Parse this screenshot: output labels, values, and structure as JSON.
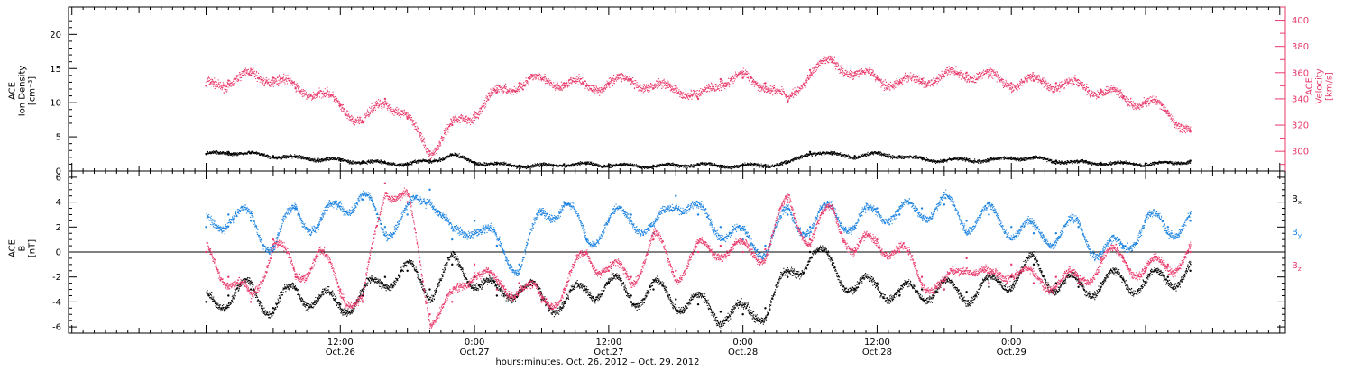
{
  "chart_data": [
    {
      "type": "scatter",
      "panel": "top",
      "ylabel_lines": [
        "ACE",
        "Ion Density",
        "[cm⁻³]"
      ],
      "ylim": [
        0,
        24
      ],
      "yticks": [
        0,
        5,
        10,
        15,
        20
      ],
      "y2label_lines": [
        "ACE",
        "Velocity",
        "[km/s]"
      ],
      "y2lim": [
        285,
        410
      ],
      "y2ticks": [
        300,
        320,
        340,
        360,
        380,
        400
      ],
      "series": [
        {
          "key": "density",
          "axis": "left",
          "color": "#000000",
          "x": [
            0,
            2,
            4,
            6,
            8,
            10,
            12,
            14,
            16,
            18,
            20,
            22,
            24,
            26,
            28,
            30,
            32,
            34,
            36,
            38,
            40,
            42,
            44,
            46,
            48,
            50,
            52,
            54,
            56,
            58,
            60,
            62,
            64,
            66,
            68,
            70,
            72,
            74,
            76,
            78,
            80,
            82,
            84,
            86,
            88
          ],
          "y": [
            2.5,
            2.8,
            2.6,
            2.2,
            2.0,
            1.8,
            1.6,
            1.4,
            1.2,
            1.1,
            1.5,
            2.4,
            1.3,
            1.0,
            0.8,
            0.8,
            1.0,
            1.1,
            0.9,
            0.8,
            0.8,
            0.9,
            1.0,
            0.8,
            0.8,
            0.9,
            1.2,
            2.8,
            2.5,
            2.2,
            2.6,
            2.2,
            1.8,
            1.6,
            1.7,
            1.6,
            2.0,
            1.9,
            1.5,
            1.3,
            1.2,
            1.1,
            1.1,
            1.2,
            1.5
          ]
        },
        {
          "key": "velocity",
          "axis": "right",
          "color": "#e8386a",
          "x": [
            0,
            2,
            4,
            6,
            8,
            10,
            12,
            14,
            16,
            18,
            20,
            22,
            24,
            26,
            28,
            30,
            32,
            34,
            36,
            38,
            40,
            42,
            44,
            46,
            48,
            50,
            52,
            54,
            56,
            58,
            60,
            62,
            64,
            66,
            68,
            70,
            72,
            74,
            76,
            78,
            80,
            82,
            84,
            86,
            88
          ],
          "y": [
            350,
            354,
            358,
            356,
            348,
            345,
            335,
            322,
            340,
            325,
            300,
            320,
            330,
            345,
            352,
            355,
            352,
            350,
            352,
            355,
            348,
            350,
            340,
            355,
            356,
            352,
            338,
            362,
            368,
            360,
            356,
            352,
            355,
            357,
            360,
            357,
            352,
            354,
            352,
            350,
            347,
            341,
            338,
            330,
            315
          ]
        }
      ]
    },
    {
      "type": "scatter",
      "panel": "bottom",
      "ylabel_lines": [
        "ACE",
        "B",
        "[nT]"
      ],
      "ylim": [
        -6.5,
        6.5
      ],
      "yticks": [
        -6,
        -4,
        -2,
        0,
        2,
        4,
        6
      ],
      "legend": [
        {
          "base": "B",
          "sub": "x",
          "color": "#000000"
        },
        {
          "base": "B",
          "sub": "y",
          "color": "#1a82e0"
        },
        {
          "base": "B",
          "sub": "z",
          "color": "#e8386a"
        }
      ],
      "series": [
        {
          "key": "bx",
          "color": "#000000",
          "x": [
            0,
            2,
            4,
            6,
            8,
            10,
            12,
            14,
            16,
            18,
            20,
            22,
            24,
            26,
            28,
            30,
            32,
            34,
            36,
            38,
            40,
            42,
            44,
            46,
            48,
            50,
            52,
            54,
            56,
            58,
            60,
            62,
            64,
            66,
            68,
            70,
            72,
            74,
            76,
            78,
            80,
            82,
            84,
            86,
            88
          ],
          "y": [
            -4.0,
            -3.5,
            -3.0,
            -4.5,
            -3.0,
            -3.8,
            -4.2,
            -3.5,
            -2.0,
            -1.5,
            -3.0,
            -1.0,
            -2.0,
            -3.5,
            -2.5,
            -3.8,
            -4.0,
            -3.0,
            -2.5,
            -3.5,
            -3.0,
            -3.8,
            -4.2,
            -4.8,
            -5.0,
            -4.5,
            -2.0,
            0.0,
            -1.0,
            -3.0,
            -2.5,
            -3.5,
            -3.0,
            -3.0,
            -3.2,
            -2.8,
            -2.0,
            -1.0,
            -2.5,
            -2.8,
            -2.5,
            -2.2,
            -2.5,
            -2.0,
            -1.5
          ]
        },
        {
          "key": "by",
          "color": "#1a82e0",
          "x": [
            0,
            2,
            4,
            6,
            8,
            10,
            12,
            14,
            16,
            18,
            20,
            22,
            24,
            26,
            28,
            30,
            32,
            34,
            36,
            38,
            40,
            42,
            44,
            46,
            48,
            50,
            52,
            54,
            56,
            58,
            60,
            62,
            64,
            66,
            68,
            70,
            72,
            74,
            76,
            78,
            80,
            82,
            84,
            86,
            88
          ],
          "y": [
            2.0,
            3.0,
            2.5,
            0.5,
            3.5,
            2.0,
            4.0,
            4.2,
            2.0,
            3.0,
            5.0,
            1.0,
            2.5,
            0.5,
            -1.0,
            3.0,
            4.0,
            1.0,
            2.5,
            3.0,
            1.5,
            4.5,
            3.0,
            2.0,
            1.0,
            0.5,
            3.0,
            2.0,
            3.5,
            2.0,
            3.5,
            3.0,
            3.5,
            3.8,
            2.5,
            3.0,
            2.0,
            1.5,
            1.5,
            2.0,
            0.0,
            0.5,
            2.5,
            2.0,
            2.5
          ]
        },
        {
          "key": "bz",
          "color": "#e8386a",
          "x": [
            0,
            2,
            4,
            6,
            8,
            10,
            12,
            14,
            16,
            18,
            20,
            22,
            24,
            26,
            28,
            30,
            32,
            34,
            36,
            38,
            40,
            42,
            44,
            46,
            48,
            50,
            52,
            54,
            56,
            58,
            60,
            62,
            64,
            66,
            68,
            70,
            72,
            74,
            76,
            78,
            80,
            82,
            84,
            86,
            88
          ],
          "y": [
            0.0,
            -2.0,
            -4.0,
            1.0,
            -2.0,
            0.0,
            -3.0,
            -4.0,
            5.5,
            4.0,
            -5.0,
            -4.0,
            -1.0,
            -3.0,
            -2.5,
            -4.0,
            -3.0,
            0.0,
            -1.5,
            -2.0,
            1.0,
            -1.5,
            0.0,
            0.5,
            0.0,
            0.2,
            4.0,
            1.0,
            3.5,
            0.0,
            1.0,
            0.0,
            -2.0,
            -3.0,
            -0.5,
            -2.5,
            -1.0,
            -2.5,
            -2.0,
            -2.5,
            -0.5,
            -0.5,
            -1.5,
            -1.0,
            0.0
          ]
        }
      ]
    }
  ],
  "x_axis": {
    "range_hours": [
      -12.3,
      96.5
    ],
    "ticks": [
      {
        "h": 12,
        "time": "12:00",
        "date": "Oct.26"
      },
      {
        "h": 24,
        "time": "0:00",
        "date": "Oct.27"
      },
      {
        "h": 36,
        "time": "12:00",
        "date": "Oct.27"
      },
      {
        "h": 48,
        "time": "0:00",
        "date": "Oct.28"
      },
      {
        "h": 60,
        "time": "12:00",
        "date": "Oct.28"
      },
      {
        "h": 72,
        "time": "0:00",
        "date": "Oct.29"
      }
    ],
    "label": "hours:minutes, Oct. 26, 2012 – Oct. 29, 2012"
  }
}
